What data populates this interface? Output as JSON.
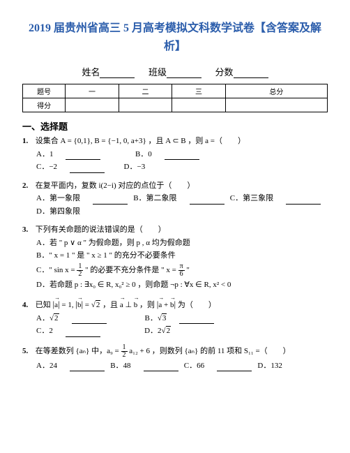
{
  "title": "2019 届贵州省高三 5 月高考模拟文科数学试卷【含答案及解析】",
  "info": {
    "name": "姓名",
    "class": "班级",
    "score": "分数"
  },
  "table": {
    "h0": "题号",
    "h1": "一",
    "h2": "二",
    "h3": "三",
    "h4": "总分",
    "r2": "得分"
  },
  "sec1": "一、选择题",
  "q1": {
    "num": "1.",
    "text": "设集合 A = {0,1}, B = {−1, 0, a+3} ，且 A ⊂ B ，则 a =（　　）",
    "a": "A．1",
    "b": "B．0",
    "c": "C．−2",
    "d": "D．−3"
  },
  "q2": {
    "num": "2.",
    "text": "在复平面内，复数 i(2−i) 对应的点位于（　　）",
    "a": "A．第一象限",
    "b": "B．第二象限",
    "c": "C．第三象限",
    "d": "D．第四象限"
  },
  "q3": {
    "num": "3.",
    "text": "下列有关命题的说法错误的是（　　）",
    "a": "A．若 \" p ∨ α \" 为假命题，则 p , α 均为假命题",
    "b": "B．\" x = 1 \" 是 \" x ≥ 1 \" 的充分不必要条件",
    "c_pre": "C．\" sin x = ",
    "c_mid": " \" 的必要不充分条件是 \" x = ",
    "c_post": " \"",
    "d": "D．若命题 p : ∃x₀ ∈ R, x₀² ≥ 0 ，则命题 ¬p : ∀x ∈ R, x² < 0"
  },
  "q4": {
    "num": "4.",
    "pre": "已知 ",
    "mid1": " = 1, ",
    "mid2": " = ",
    "mid3": " ，且 ",
    "mid4": " ，则 ",
    "post": " 为（　　）",
    "a_pre": "A．",
    "b_pre": "B．",
    "c": "C．2",
    "d_pre": "D．2"
  },
  "q5": {
    "num": "5.",
    "pre": "在等差数列 {aₙ} 中，a₉ = ",
    "mid": " a₁₂ + 6 ，则数列 {aₙ} 的前 11 项和 S₁₁ =（　　）",
    "a": "A．24",
    "b": "B．48",
    "c": "C．66",
    "d": "D．132"
  }
}
